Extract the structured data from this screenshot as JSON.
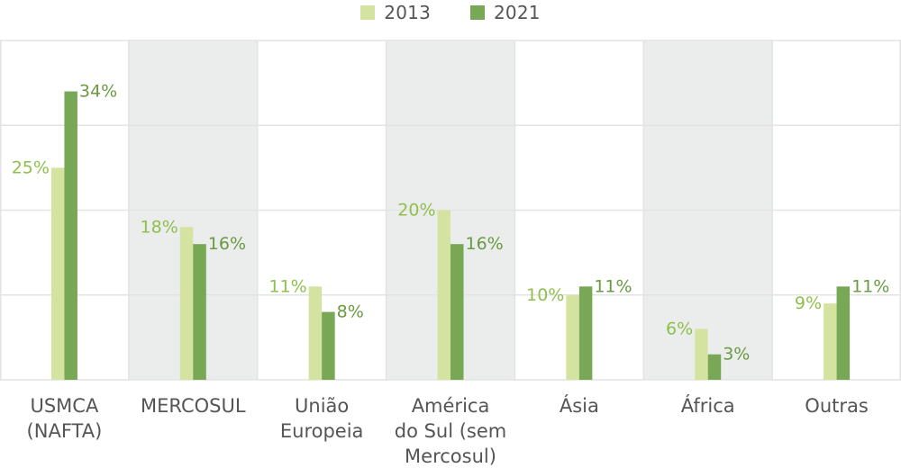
{
  "chart_data": {
    "type": "bar",
    "title": "",
    "xlabel": "",
    "ylabel": "",
    "ylim": [
      0,
      40
    ],
    "grid": true,
    "legend_placement": "top-center",
    "categories": [
      [
        "USMCA",
        "(NAFTA)"
      ],
      [
        "MERCOSUL"
      ],
      [
        "União",
        "Europeia"
      ],
      [
        "América",
        "do Sul (sem",
        "Mercosul)"
      ],
      [
        "Ásia"
      ],
      [
        "África"
      ],
      [
        "Outras"
      ]
    ],
    "series": [
      {
        "name": "2013",
        "color": "#d4e3a0",
        "label_color": "#8fbf4d",
        "values": [
          25,
          18,
          11,
          20,
          10,
          6,
          9
        ],
        "labels": [
          "25%",
          "18%",
          "11%",
          "20%",
          "10%",
          "6%",
          "9%"
        ]
      },
      {
        "name": "2021",
        "color": "#78a856",
        "label_color": "#6a9a42",
        "values": [
          34,
          16,
          8,
          16,
          11,
          3,
          11
        ],
        "labels": [
          "34%",
          "16%",
          "8%",
          "16%",
          "11%",
          "3%",
          "11%"
        ]
      }
    ]
  },
  "colors": {
    "band_shaded": "#ebecec",
    "band_plain": "#ffffff",
    "gridline": "#e3e3e3",
    "category_label": "#555555"
  }
}
